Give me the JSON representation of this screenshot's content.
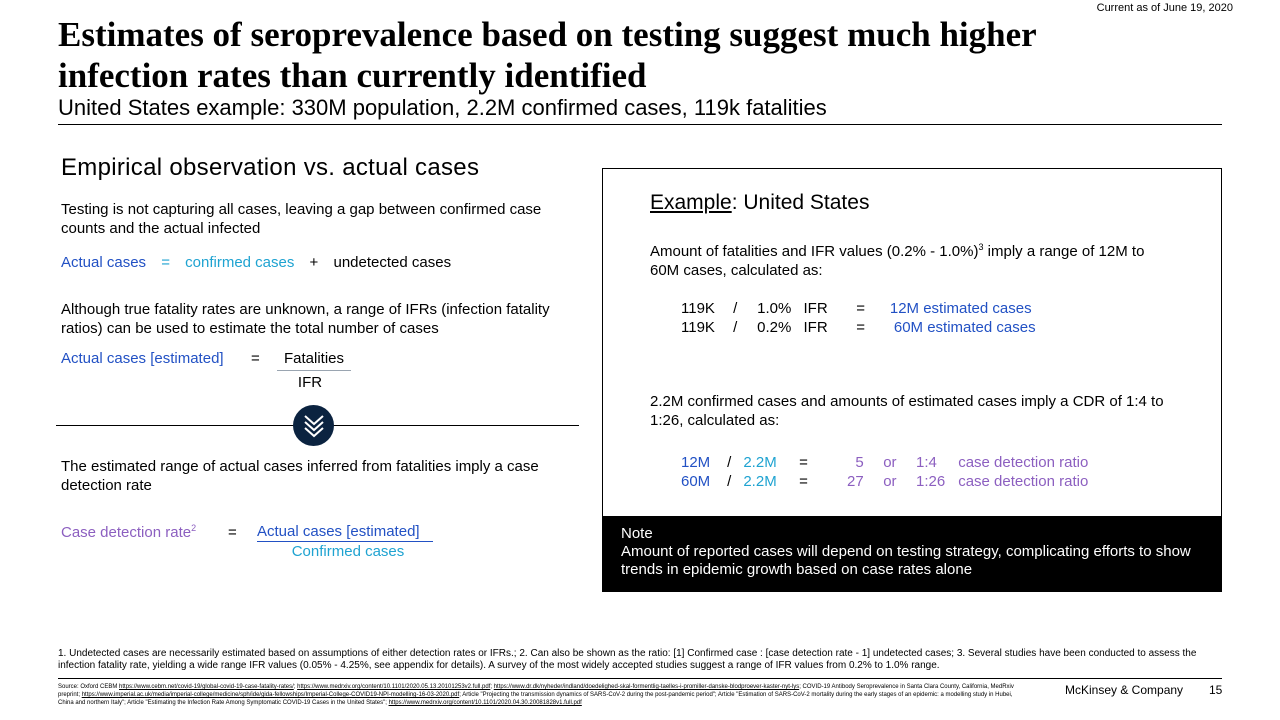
{
  "header": {
    "current_as_of": "Current as of June 19, 2020",
    "title_line1": "Estimates of seroprevalence based on testing suggest much higher",
    "title_line2": "infection rates than currently identified",
    "subtitle": "United States example: 330M population, 2.2M confirmed cases, 119k fatalities"
  },
  "left": {
    "heading": "Empirical observation vs. actual cases",
    "para1": "Testing is not capturing all cases, leaving a gap between confirmed case counts and the actual infected",
    "eq1": {
      "actual": "Actual cases",
      "eq": "=",
      "confirmed": "confirmed cases",
      "plus": "+",
      "undetected": "undetected cases"
    },
    "para2": "Although true fatality rates are unknown, a range of IFRs (infection fatality ratios) can be used to estimate the total number of cases",
    "eq2": {
      "lhs": "Actual cases [estimated]",
      "eq": "=",
      "num": "Fatalities",
      "den": "IFR"
    },
    "para3": "The estimated range of actual cases inferred from fatalities imply a case detection rate",
    "eq3": {
      "lhs": "Case detection rate",
      "sup": "2",
      "eq": "=",
      "num": "Actual cases [estimated]",
      "den": "Confirmed cases"
    }
  },
  "right": {
    "heading_underlined": "Example",
    "heading_rest": ": United States",
    "para1": "Amount of fatalities and IFR values (0.2% - 1.0%)",
    "para1_sup": "3",
    "para1_rest": " imply a range of 12M to 60M cases, calculated as:",
    "calc1": [
      {
        "a": "119K",
        "op": "/",
        "b": "1.0%",
        "c": "IFR",
        "eq": "=",
        "result": "12M estimated cases"
      },
      {
        "a": "119K",
        "op": "/",
        "b": "0.2%",
        "c": "IFR",
        "eq": "=",
        "result": "60M estimated cases"
      }
    ],
    "para2": "2.2M confirmed cases and amounts of estimated cases imply a CDR of 1:4 to 1:26, calculated as:",
    "calc2": [
      {
        "a": "12M",
        "op": "/",
        "b": "2.2M",
        "eq": "=",
        "n": "5",
        "or": "or",
        "ratio": "1:4",
        "label": "case detection ratio"
      },
      {
        "a": "60M",
        "op": "/",
        "b": "2.2M",
        "eq": "=",
        "n": "27",
        "or": "or",
        "ratio": "1:26",
        "label": "case detection ratio"
      }
    ],
    "note_title": "Note",
    "note_text": "Amount of reported cases will depend on testing strategy, complicating efforts to show trends in epidemic growth based on case rates alone"
  },
  "footnotes": "1. Undetected cases are necessarily estimated based on assumptions of either detection rates or IFRs.; 2. Can also be shown as the ratio: [1] Confirmed case : [case detection rate - 1] undetected cases; 3. Several studies have been conducted to assess the infection fatality rate, yielding a wide range IFR values (0.05% - 4.25%, see appendix for details). A survey of the most widely accepted studies suggest a range of IFR values from 0.2% to 1.0% range.",
  "source": {
    "prefix": "Source: Oxford CEBM ",
    "link1": "https://www.cebm.net/covid-19/global-covid-19-case-fatality-rates/",
    "sep1": "; ",
    "link2": "https://www.medrxiv.org/content/10.1101/2020.05.13.20101253v2.full.pdf",
    "sep2": "; ",
    "link3": "https://www.dr.dk/nyheder/indland/doedelighed-skal-formentlig-taelles-i-promiller-danske-blodproever-kaster-nyt-lys",
    "mid1": "; COVID-19 Antibody Seroprevalence in Santa Clara County, California, MedRxiv preprint; ",
    "link4": "https://www.imperial.ac.uk/media/imperial-college/medicine/sph/ide/gida-fellowships/Imperial-College-COVID19-NPI-modelling-16-03-2020.pdf",
    "mid2": "; Article \"Projecting the transmission dynamics of SARS-CoV-2 during the post-pandemic period\"; Article \"Estimation of SARS-CoV-2 mortality during the early stages of an epidemic: a modelling study in Hubei, China and northern Italy\"; Article \"Estimating the Infection Rate Among Symptomatic COVID-19 Cases in the United States\"; ",
    "link5": "https://www.medrxiv.org/content/10.1101/2020.04.30.20081828v1.full.pdf"
  },
  "footer": {
    "company": "McKinsey & Company",
    "page": "15"
  },
  "colors": {
    "blue": "#2251c4",
    "cyan": "#1fa3d1",
    "purple": "#8c5fc0",
    "badge": "#0b2340"
  },
  "icons": {
    "divider_badge": "double-chevron-down-icon"
  }
}
